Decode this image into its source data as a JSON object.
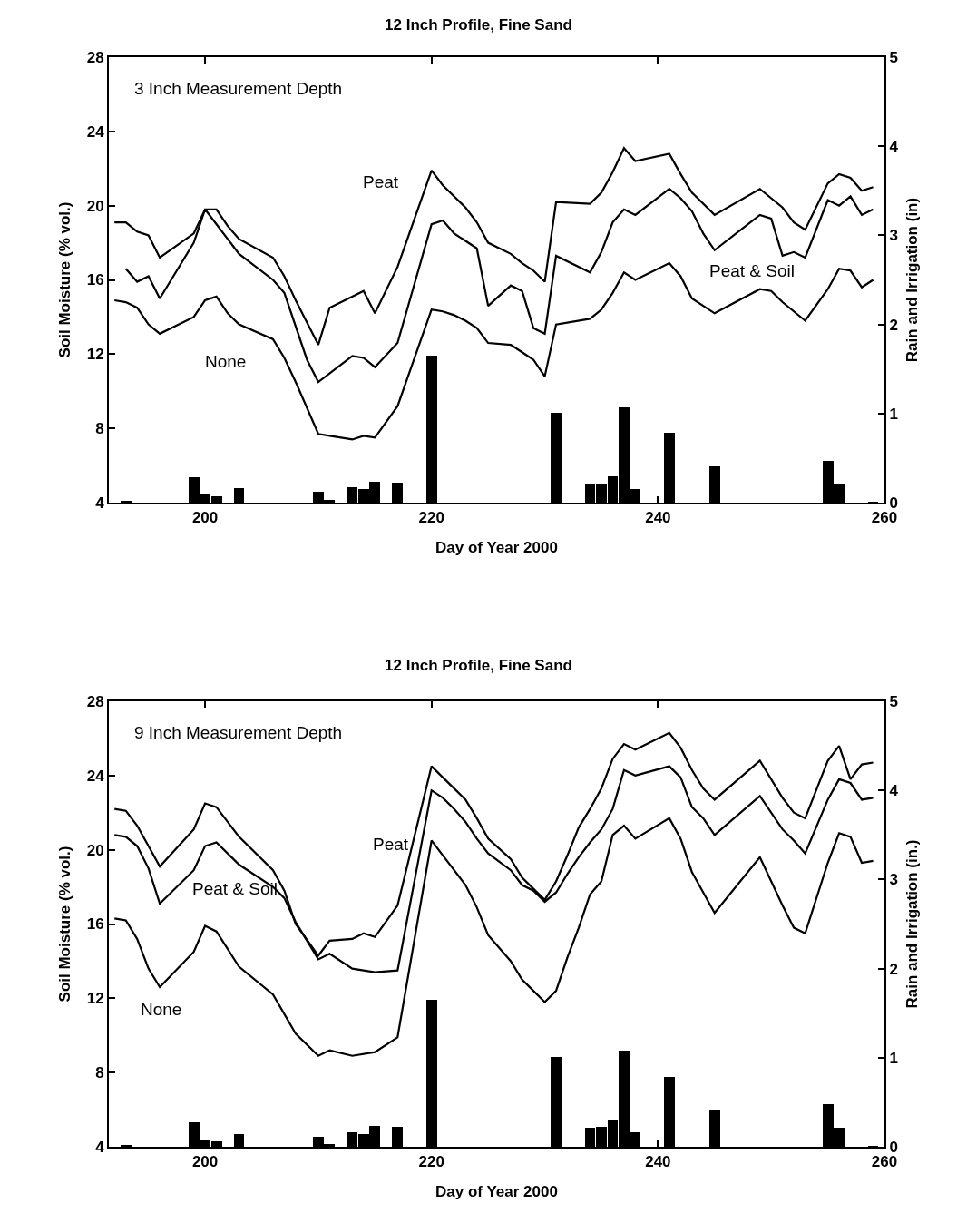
{
  "chart_data": [
    {
      "type": "line",
      "title": "12 Inch Profile, Fine Sand",
      "xlabel": "Day of Year 2000",
      "ylabel": "Soil Moisture (% vol.)",
      "y2label": "Rain and Irrigation (in)",
      "xlim": [
        191.5,
        260
      ],
      "xticks": [
        200,
        220,
        240,
        260
      ],
      "ylim": [
        4,
        28
      ],
      "yticks": [
        4,
        8,
        12,
        16,
        20,
        24,
        28
      ],
      "y2lim": [
        0,
        5
      ],
      "y2ticks": [
        0,
        1,
        2,
        3,
        4,
        5
      ],
      "grid": false,
      "legend": false,
      "line_style": "solid",
      "marker": "none",
      "annotations": [
        "3 Inch Measurement Depth"
      ],
      "series": [
        {
          "type": "bar",
          "axis": "y2",
          "color": "#000000",
          "x": [
            193,
            199,
            200,
            201,
            203,
            210,
            211,
            213,
            214,
            215,
            217,
            220,
            231,
            234,
            235,
            236,
            237,
            238,
            241,
            245,
            255,
            256,
            259
          ],
          "values": [
            0.02,
            0.29,
            0.09,
            0.07,
            0.16,
            0.12,
            0.03,
            0.17,
            0.15,
            0.23,
            0.22,
            1.65,
            1.01,
            0.2,
            0.21,
            0.3,
            1.07,
            0.15,
            0.78,
            0.41,
            0.47,
            0.2,
            0.01
          ]
        },
        {
          "name": "Peat",
          "color": "#000000",
          "x": [
            192,
            193,
            194,
            195,
            196,
            199,
            200,
            201,
            202,
            203,
            206,
            207,
            208,
            210,
            211,
            214,
            215,
            217,
            220,
            221,
            222,
            223,
            224,
            225,
            227,
            228,
            229,
            230,
            231,
            234,
            235,
            236,
            237,
            238,
            241,
            242,
            243,
            245,
            249,
            251,
            252,
            253,
            255,
            256,
            257,
            258,
            259
          ],
          "values": [
            19.1,
            19.1,
            18.6,
            18.4,
            17.2,
            18.5,
            19.8,
            19.8,
            18.9,
            18.2,
            17.2,
            16.2,
            14.9,
            12.5,
            14.5,
            15.4,
            14.2,
            16.7,
            21.9,
            21.1,
            20.5,
            19.9,
            19.1,
            18.0,
            17.4,
            16.9,
            16.5,
            15.9,
            20.2,
            20.1,
            20.7,
            21.8,
            23.1,
            22.4,
            22.8,
            21.7,
            20.7,
            19.5,
            20.9,
            19.9,
            19.1,
            18.7,
            21.2,
            21.7,
            21.5,
            20.8,
            21.0
          ]
        },
        {
          "name": "Peat & Soil",
          "color": "#000000",
          "x": [
            193,
            194,
            195,
            196,
            199,
            200,
            203,
            206,
            207,
            209,
            210,
            213,
            214,
            215,
            217,
            220,
            221,
            222,
            223,
            224,
            225,
            227,
            228,
            229,
            230,
            231,
            234,
            235,
            236,
            237,
            238,
            241,
            242,
            243,
            244,
            245,
            249,
            250,
            251,
            252,
            253,
            255,
            256,
            257,
            258,
            259
          ],
          "values": [
            16.6,
            15.9,
            16.2,
            15.0,
            18.0,
            19.8,
            17.4,
            16.0,
            15.3,
            11.7,
            10.5,
            11.9,
            11.8,
            11.3,
            12.6,
            19.0,
            19.2,
            18.5,
            18.1,
            17.7,
            14.6,
            15.7,
            15.4,
            13.4,
            13.1,
            17.3,
            16.4,
            17.5,
            19.1,
            19.8,
            19.5,
            20.9,
            20.4,
            19.7,
            18.5,
            17.6,
            19.5,
            19.3,
            17.3,
            17.5,
            17.2,
            20.3,
            20.0,
            20.5,
            19.5,
            19.8
          ]
        },
        {
          "name": "None",
          "color": "#000000",
          "x": [
            192,
            193,
            194,
            195,
            196,
            199,
            200,
            201,
            202,
            203,
            206,
            207,
            208,
            210,
            211,
            213,
            214,
            215,
            217,
            220,
            221,
            222,
            223,
            224,
            225,
            227,
            228,
            229,
            230,
            231,
            234,
            235,
            236,
            237,
            238,
            241,
            242,
            243,
            245,
            249,
            250,
            251,
            253,
            255,
            256,
            257,
            258,
            259
          ],
          "values": [
            14.9,
            14.8,
            14.5,
            13.6,
            13.1,
            14.0,
            14.9,
            15.1,
            14.2,
            13.6,
            12.8,
            11.8,
            10.5,
            7.7,
            7.6,
            7.4,
            7.6,
            7.5,
            9.2,
            14.4,
            14.3,
            14.1,
            13.8,
            13.4,
            12.6,
            12.5,
            12.1,
            11.7,
            10.8,
            13.6,
            13.9,
            14.4,
            15.3,
            16.4,
            16.0,
            16.9,
            16.2,
            15.0,
            14.2,
            15.5,
            15.4,
            14.8,
            13.8,
            15.5,
            16.6,
            16.5,
            15.6,
            16.0
          ]
        }
      ]
    },
    {
      "type": "line",
      "title": "12 Inch Profile, Fine Sand",
      "xlabel": "Day of Year 2000",
      "ylabel": "Soil Moisture (% vol.)",
      "y2label": "Rain and Irrigation (in.)",
      "xlim": [
        191.5,
        260
      ],
      "xticks": [
        200,
        220,
        240,
        260
      ],
      "ylim": [
        4,
        28
      ],
      "yticks": [
        4,
        8,
        12,
        16,
        20,
        24,
        28
      ],
      "y2lim": [
        0,
        5
      ],
      "y2ticks": [
        0,
        1,
        2,
        3,
        4,
        5
      ],
      "grid": false,
      "legend": false,
      "line_style": "solid",
      "marker": "none",
      "annotations": [
        "9 Inch Measurement Depth"
      ],
      "series": [
        {
          "type": "bar",
          "axis": "y2",
          "color": "#000000",
          "x": [
            193,
            199,
            200,
            201,
            203,
            210,
            211,
            213,
            214,
            215,
            217,
            220,
            231,
            234,
            235,
            236,
            237,
            238,
            241,
            245,
            255,
            256,
            259
          ],
          "values": [
            0.02,
            0.28,
            0.08,
            0.06,
            0.14,
            0.11,
            0.03,
            0.16,
            0.14,
            0.23,
            0.22,
            1.65,
            1.01,
            0.21,
            0.22,
            0.3,
            1.08,
            0.16,
            0.78,
            0.42,
            0.48,
            0.21,
            0.01
          ]
        },
        {
          "name": "Peat",
          "color": "#000000",
          "x": [
            192,
            193,
            194,
            195,
            196,
            199,
            200,
            201,
            203,
            206,
            207,
            208,
            210,
            211,
            213,
            214,
            215,
            217,
            220,
            221,
            222,
            223,
            224,
            225,
            227,
            228,
            229,
            230,
            231,
            232,
            233,
            234,
            235,
            236,
            237,
            238,
            241,
            242,
            243,
            244,
            245,
            249,
            251,
            252,
            253,
            255,
            256,
            257,
            258,
            259
          ],
          "values": [
            22.2,
            22.1,
            21.3,
            20.2,
            19.1,
            21.1,
            22.5,
            22.3,
            20.7,
            18.9,
            17.8,
            16.0,
            14.3,
            15.1,
            15.2,
            15.5,
            15.3,
            17.0,
            24.5,
            23.9,
            23.3,
            22.7,
            21.7,
            20.6,
            19.5,
            18.5,
            17.9,
            17.3,
            18.3,
            19.7,
            21.2,
            22.2,
            23.3,
            24.9,
            25.7,
            25.4,
            26.3,
            25.5,
            24.3,
            23.3,
            22.7,
            24.8,
            22.8,
            22.0,
            21.7,
            24.8,
            25.6,
            23.8,
            24.6,
            24.7
          ]
        },
        {
          "name": "Peat & Soil",
          "color": "#000000",
          "x": [
            192,
            193,
            194,
            195,
            196,
            199,
            200,
            201,
            203,
            206,
            207,
            208,
            210,
            211,
            213,
            215,
            217,
            220,
            221,
            222,
            223,
            224,
            225,
            227,
            228,
            229,
            230,
            231,
            232,
            233,
            234,
            235,
            236,
            237,
            238,
            241,
            242,
            243,
            244,
            245,
            249,
            251,
            252,
            253,
            255,
            256,
            257,
            258,
            259
          ],
          "values": [
            20.8,
            20.7,
            20.2,
            19.0,
            17.1,
            18.9,
            20.2,
            20.4,
            19.2,
            18.0,
            17.4,
            16.1,
            14.1,
            14.4,
            13.6,
            13.4,
            13.5,
            23.2,
            22.8,
            22.2,
            21.5,
            20.6,
            19.8,
            18.9,
            18.1,
            17.8,
            17.2,
            17.7,
            18.7,
            19.6,
            20.4,
            21.1,
            22.2,
            24.3,
            24.0,
            24.5,
            23.9,
            22.3,
            21.7,
            20.8,
            22.9,
            21.1,
            20.5,
            19.8,
            22.7,
            23.8,
            23.6,
            22.7,
            22.8
          ]
        },
        {
          "name": "None",
          "color": "#000000",
          "x": [
            192,
            193,
            194,
            195,
            196,
            199,
            200,
            201,
            203,
            206,
            208,
            210,
            211,
            213,
            215,
            217,
            220,
            221,
            222,
            223,
            224,
            225,
            227,
            228,
            229,
            230,
            231,
            232,
            233,
            234,
            235,
            236,
            237,
            238,
            241,
            242,
            243,
            244,
            245,
            249,
            251,
            252,
            253,
            255,
            256,
            257,
            258,
            259
          ],
          "values": [
            16.3,
            16.2,
            15.2,
            13.6,
            12.6,
            14.5,
            15.9,
            15.6,
            13.7,
            12.2,
            10.1,
            8.9,
            9.2,
            8.9,
            9.1,
            9.9,
            20.5,
            19.7,
            18.9,
            18.1,
            16.9,
            15.4,
            14.0,
            13.0,
            12.4,
            11.8,
            12.4,
            14.2,
            15.8,
            17.6,
            18.3,
            20.8,
            21.3,
            20.6,
            21.7,
            20.6,
            18.8,
            17.7,
            16.6,
            19.6,
            17.0,
            15.8,
            15.5,
            19.3,
            20.9,
            20.7,
            19.3,
            19.4
          ]
        }
      ]
    }
  ]
}
